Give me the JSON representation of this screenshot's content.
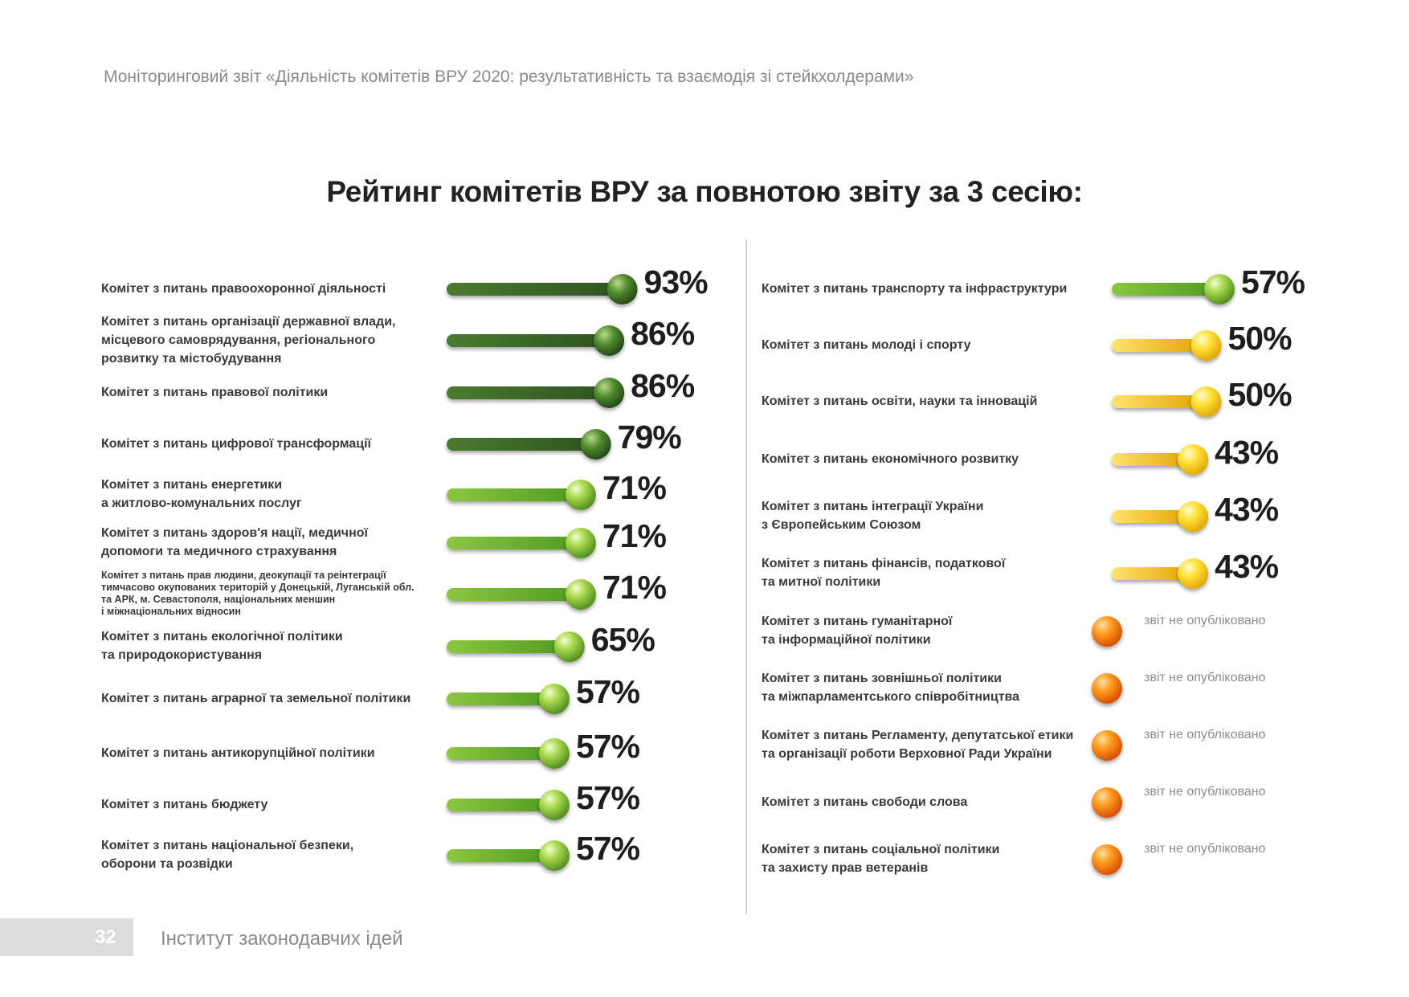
{
  "header": {
    "report_title": "Моніторинговий звіт «Діяльність комітетів ВРУ 2020: результативність та взаємодія зі стейкхолдерами»"
  },
  "footer": {
    "page_number": "32",
    "organization": "Інститут законодавчих ідей"
  },
  "colors": {
    "dark_green": "#3f6b2a",
    "light_green": "#6fae2e",
    "yellow": "#f2c200",
    "orange": "#f07a10"
  },
  "chart_data": {
    "type": "bar",
    "title": "Рейтинг комітетів ВРУ за повнотою звіту за 3 сесію:",
    "unit": "%",
    "not_published_label": "звіт не опубліковано",
    "left_column": [
      {
        "label": [
          "Комітет з питань правоохоронної діяльності"
        ],
        "value": 93,
        "value_label": "93%",
        "color": "dark_green"
      },
      {
        "label": [
          "Комітет з питань організації державної влади,",
          "місцевого самоврядування, регіонального",
          "розвитку та містобудування"
        ],
        "value": 86,
        "value_label": "86%",
        "color": "dark_green"
      },
      {
        "label": [
          "Комітет з питань правової політики"
        ],
        "value": 86,
        "value_label": "86%",
        "color": "dark_green"
      },
      {
        "label": [
          "Комітет з питань цифрової трансформації"
        ],
        "value": 79,
        "value_label": "79%",
        "color": "dark_green"
      },
      {
        "label": [
          "Комітет з питань енергетики",
          "а житлово-комунальних послуг"
        ],
        "value": 71,
        "value_label": "71%",
        "color": "light_green"
      },
      {
        "label": [
          "Комітет з питань здоров'я нації, медичної",
          "допомоги та медичного страхування"
        ],
        "value": 71,
        "value_label": "71%",
        "color": "light_green"
      },
      {
        "label": [
          "Комітет з питань прав людини, деокупації та реінтеграції",
          "тимчасово окупованих територій у Донецькій, Луганській обл.",
          "та АРК, м. Севастополя, національних меншин",
          "і міжнаціональних відносин"
        ],
        "value": 71,
        "value_label": "71%",
        "color": "light_green",
        "small": true
      },
      {
        "label": [
          "Комітет з питань екологічної політики",
          "та природокористування"
        ],
        "value": 65,
        "value_label": "65%",
        "color": "light_green"
      },
      {
        "label": [
          "Комітет з питань аграрної та земельної політики"
        ],
        "value": 57,
        "value_label": "57%",
        "color": "light_green"
      },
      {
        "label": [
          "Комітет з питань антикорупційної політики"
        ],
        "value": 57,
        "value_label": "57%",
        "color": "light_green"
      },
      {
        "label": [
          "Комітет з питань бюджету"
        ],
        "value": 57,
        "value_label": "57%",
        "color": "light_green"
      },
      {
        "label": [
          "Комітет з питань національної безпеки,",
          "оборони та розвідки"
        ],
        "value": 57,
        "value_label": "57%",
        "color": "light_green"
      }
    ],
    "right_column": [
      {
        "label": [
          "Комітет з питань транспорту та інфраструктури"
        ],
        "value": 57,
        "value_label": "57%",
        "color": "light_green"
      },
      {
        "label": [
          "Комітет з питань молоді і спорту"
        ],
        "value": 50,
        "value_label": "50%",
        "color": "yellow"
      },
      {
        "label": [
          "Комітет з питань освіти, науки та інновацій"
        ],
        "value": 50,
        "value_label": "50%",
        "color": "yellow"
      },
      {
        "label": [
          "Комітет з питань економічного розвитку"
        ],
        "value": 43,
        "value_label": "43%",
        "color": "yellow"
      },
      {
        "label": [
          "Комітет з питань інтеграції України",
          "з Європейським Союзом"
        ],
        "value": 43,
        "value_label": "43%",
        "color": "yellow"
      },
      {
        "label": [
          "Комітет з питань фінансів, податкової",
          "та митної політики"
        ],
        "value": 43,
        "value_label": "43%",
        "color": "yellow"
      },
      {
        "label": [
          "Комітет з питань гуманітарної",
          "та інформаційної політики"
        ],
        "value": null,
        "color": "orange"
      },
      {
        "label": [
          "Комітет з питань зовнішньої політики",
          "та міжпарламентського співробітництва"
        ],
        "value": null,
        "color": "orange"
      },
      {
        "label": [
          "Комітет з питань Регламенту, депутатської етики",
          "та організації роботи Верховної Ради України"
        ],
        "value": null,
        "color": "orange"
      },
      {
        "label": [
          "Комітет з питань свободи слова"
        ],
        "value": null,
        "color": "orange"
      },
      {
        "label": [
          "Комітет з питань соціальної політики",
          "та захисту прав ветеранів"
        ],
        "value": null,
        "color": "orange"
      }
    ]
  }
}
